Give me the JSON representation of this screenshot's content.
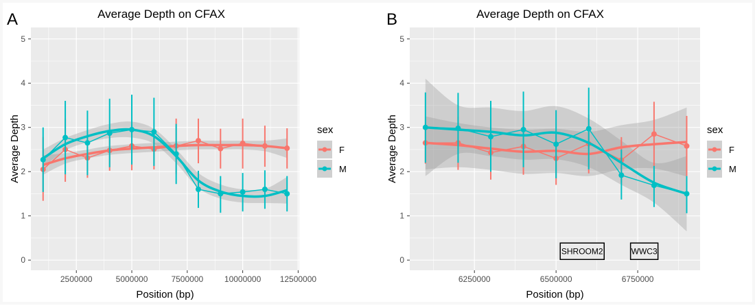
{
  "colors": {
    "F": "#F8766D",
    "M": "#00BFC4",
    "panel_bg": "#EBEBEB",
    "band": "#999999"
  },
  "chart_data": [
    {
      "panel_label": "A",
      "type": "line",
      "title": "Average Depth on CFAX",
      "xlabel": "Position (bp)",
      "ylabel": "Average Depth",
      "xlim": [
        450000,
        12550000
      ],
      "ylim": [
        -0.23,
        5.26
      ],
      "xticks": [
        2500000,
        5000000,
        7500000,
        10000000,
        12500000
      ],
      "xtick_labels": [
        "2500000",
        "5000000",
        "7500000",
        "10000000",
        "12500000"
      ],
      "yticks": [
        0,
        1,
        2,
        3,
        4,
        5
      ],
      "ytick_labels": [
        "0",
        "1",
        "2",
        "3",
        "4",
        "5"
      ],
      "grid": true,
      "legend": {
        "title": "sex",
        "position": "right"
      },
      "x": [
        1000000,
        2000000,
        3000000,
        4000000,
        5000000,
        6000000,
        7000000,
        8000000,
        9000000,
        10000000,
        11000000,
        12000000
      ],
      "series": [
        {
          "name": "F",
          "values": [
            2.05,
            2.5,
            2.31,
            2.48,
            2.58,
            2.51,
            2.58,
            2.7,
            2.52,
            2.64,
            2.58,
            2.53
          ],
          "lower": [
            1.34,
            1.77,
            1.86,
            2.02,
            2.03,
            2.05,
            1.95,
            2.19,
            2.07,
            2.07,
            2.11,
            2.07
          ],
          "upper": [
            2.78,
            3.2,
            2.72,
            3.0,
            3.12,
            2.98,
            3.2,
            3.2,
            2.97,
            3.2,
            3.04,
            2.98
          ],
          "smooth": [
            2.15,
            2.3,
            2.4,
            2.48,
            2.52,
            2.55,
            2.58,
            2.6,
            2.6,
            2.6,
            2.58,
            2.53
          ],
          "smooth_se": [
            0.22,
            0.12,
            0.1,
            0.1,
            0.1,
            0.1,
            0.1,
            0.1,
            0.1,
            0.1,
            0.12,
            0.22
          ]
        },
        {
          "name": "M",
          "values": [
            2.27,
            2.77,
            2.65,
            2.87,
            2.95,
            2.9,
            2.4,
            1.6,
            1.5,
            1.54,
            1.6,
            1.5
          ],
          "lower": [
            1.54,
            1.94,
            1.92,
            2.1,
            2.16,
            2.13,
            1.72,
            1.18,
            1.07,
            1.1,
            1.16,
            1.1
          ],
          "upper": [
            3.0,
            3.6,
            3.38,
            3.65,
            3.74,
            3.67,
            3.08,
            2.02,
            1.9,
            1.97,
            2.03,
            1.9
          ],
          "smooth": [
            2.3,
            2.62,
            2.8,
            2.92,
            2.95,
            2.8,
            2.35,
            1.8,
            1.55,
            1.45,
            1.45,
            1.58
          ],
          "smooth_se": [
            0.2,
            0.14,
            0.14,
            0.16,
            0.18,
            0.17,
            0.16,
            0.17,
            0.16,
            0.15,
            0.16,
            0.3
          ]
        }
      ],
      "annotations": []
    },
    {
      "panel_label": "B",
      "type": "line",
      "title": "Average Depth on CFAX",
      "xlabel": "Position (bp)",
      "ylabel": "Average Depth",
      "xlim": [
        6052000,
        6941000
      ],
      "ylim": [
        -0.23,
        5.26
      ],
      "xticks": [
        6250000,
        6500000,
        6750000
      ],
      "xtick_labels": [
        "6250000",
        "6500000",
        "6750000"
      ],
      "yticks": [
        0,
        1,
        2,
        3,
        4,
        5
      ],
      "ytick_labels": [
        "0",
        "1",
        "2",
        "3",
        "4",
        "5"
      ],
      "grid": true,
      "legend": {
        "title": "sex",
        "position": "right"
      },
      "x": [
        6100000,
        6200000,
        6300000,
        6400000,
        6500000,
        6600000,
        6700000,
        6800000,
        6900000
      ],
      "series": [
        {
          "name": "F",
          "values": [
            2.65,
            2.65,
            2.43,
            2.57,
            2.3,
            2.63,
            2.26,
            2.85,
            2.58
          ],
          "lower": [
            2.18,
            2.04,
            1.82,
            1.93,
            1.7,
            1.96,
            1.75,
            2.1,
            1.9
          ],
          "upper": [
            3.1,
            3.24,
            3.05,
            3.2,
            2.86,
            3.29,
            2.78,
            3.58,
            3.26
          ],
          "smooth": [
            2.65,
            2.6,
            2.52,
            2.45,
            2.47,
            2.4,
            2.55,
            2.62,
            2.67
          ],
          "smooth_se": [
            0.6,
            0.5,
            0.48,
            0.5,
            0.5,
            0.5,
            0.5,
            0.55,
            0.78
          ]
        },
        {
          "name": "M",
          "values": [
            3.0,
            2.98,
            2.79,
            2.95,
            2.62,
            2.97,
            1.92,
            1.69,
            1.5
          ],
          "lower": [
            2.2,
            2.2,
            2.0,
            2.1,
            1.85,
            2.05,
            1.37,
            1.2,
            1.06
          ],
          "upper": [
            3.79,
            3.78,
            3.6,
            3.81,
            3.39,
            3.9,
            2.5,
            2.13,
            1.9
          ],
          "smooth": [
            3.0,
            2.95,
            2.9,
            2.82,
            2.88,
            2.65,
            2.2,
            1.75,
            1.5
          ],
          "smooth_se": [
            1.1,
            0.55,
            0.55,
            0.55,
            0.6,
            0.55,
            0.5,
            0.45,
            0.85
          ]
        }
      ],
      "annotations": [
        {
          "label": "SHROOM2",
          "x": 6580000,
          "y": 0.2
        },
        {
          "label": "WWC3",
          "x": 6770000,
          "y": 0.2
        }
      ]
    }
  ]
}
